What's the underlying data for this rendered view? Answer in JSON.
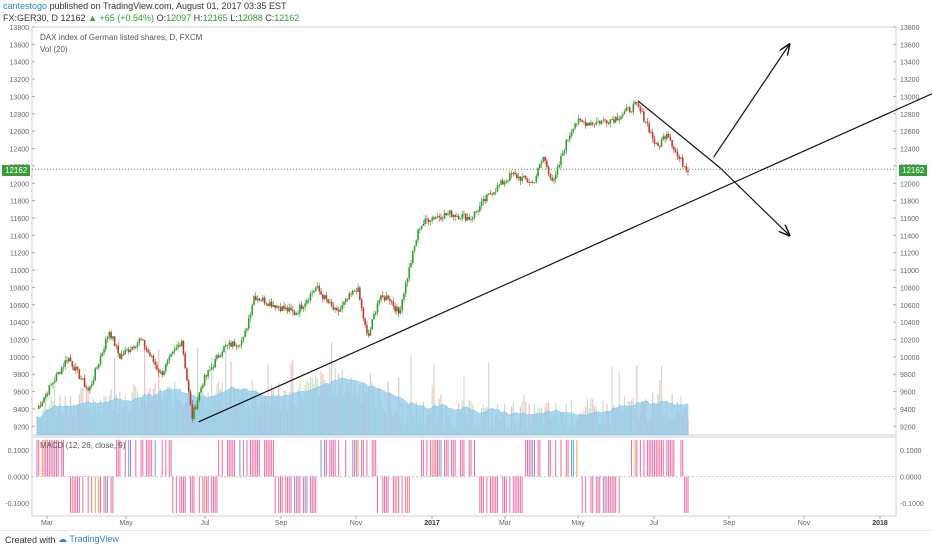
{
  "header": {
    "author": "cantestogo",
    "published": "published on TradingView.com, August 01, 2017 03:35 EST",
    "symbol": "FX:GER30, D",
    "last": "12162",
    "change": "+65 (+0.54%)",
    "o_label": "O:",
    "o": "12097",
    "h_label": "H:",
    "h": "12165",
    "l_label": "L:",
    "l": "12088",
    "c_label": "C:",
    "c": "12162"
  },
  "legend": {
    "title": "DAX index of German listed shares, D, FXCM",
    "vol": "Vol (20)",
    "macd": "MACD (12, 26, close, 9)"
  },
  "footer": {
    "created": "Created with",
    "brand": "TradingView"
  },
  "colors": {
    "up": "#2c9f2c",
    "down": "#c0392b",
    "volume": "#8fc9ec",
    "macd_pos": "#ea6fa7",
    "macd_neg": "#ea6fa7",
    "trend": "#111111",
    "price_line": "#3a9c3a"
  },
  "chart_data": [
    {
      "type": "candlestick",
      "title": "DAX index of German listed shares, D, FXCM",
      "ylim": [
        9100,
        13800
      ],
      "y_ticks": [
        9200,
        9400,
        9600,
        9800,
        10000,
        10200,
        10400,
        10600,
        10800,
        11000,
        11200,
        11400,
        11600,
        11800,
        12000,
        12200,
        12400,
        12600,
        12800,
        13000,
        13200,
        13400,
        13600,
        13800
      ],
      "x_ticks": [
        "Mar",
        "May",
        "Jul",
        "Sep",
        "Nov",
        "2017",
        "Mar",
        "May",
        "Jul",
        "Sep",
        "Nov",
        "2018"
      ],
      "last_price": 12162,
      "price_path": [
        [
          0,
          9400
        ],
        [
          2,
          9800
        ],
        [
          3,
          10000
        ],
        [
          5,
          9600
        ],
        [
          7,
          10300
        ],
        [
          8,
          10000
        ],
        [
          10,
          10200
        ],
        [
          12,
          9800
        ],
        [
          14,
          10200
        ],
        [
          15,
          9300
        ],
        [
          16,
          9700
        ],
        [
          18,
          10100
        ],
        [
          20,
          10200
        ],
        [
          21,
          10700
        ],
        [
          23,
          10600
        ],
        [
          25,
          10500
        ],
        [
          27,
          10800
        ],
        [
          29,
          10500
        ],
        [
          31,
          10800
        ],
        [
          32,
          10200
        ],
        [
          33,
          10650
        ],
        [
          34,
          10700
        ],
        [
          35,
          10500
        ],
        [
          36,
          11000
        ],
        [
          37,
          11500
        ],
        [
          38,
          11600
        ],
        [
          40,
          11650
        ],
        [
          42,
          11600
        ],
        [
          44,
          11900
        ],
        [
          46,
          12100
        ],
        [
          48,
          12000
        ],
        [
          49,
          12300
        ],
        [
          50,
          12000
        ],
        [
          51,
          12400
        ],
        [
          52,
          12700
        ],
        [
          54,
          12700
        ],
        [
          56,
          12750
        ],
        [
          58,
          12900
        ],
        [
          59,
          12700
        ],
        [
          60,
          12400
        ],
        [
          61,
          12600
        ],
        [
          62,
          12300
        ],
        [
          63,
          12162
        ]
      ],
      "trendlines": [
        {
          "from": [
            "2016-07-01",
            9250
          ],
          "to": [
            "2018-03-15",
            13230
          ]
        },
        {
          "from": [
            "2017-06-20",
            12950
          ],
          "to": [
            "2017-08-25",
            12180
          ]
        }
      ],
      "arrows": [
        {
          "from": [
            "2017-08-20",
            12300
          ],
          "to": [
            "2017-10-20",
            13600
          ]
        },
        {
          "from": [
            "2017-08-25",
            12180
          ],
          "to": [
            "2017-10-20",
            11400
          ]
        }
      ]
    },
    {
      "type": "bar",
      "title": "Vol (20)",
      "description_avg": "volume moving average area"
    },
    {
      "type": "bar",
      "title": "MACD (12, 26, close, 9)",
      "ylim": [
        -0.15,
        0.15
      ],
      "y_ticks": [
        0.1,
        0.0,
        -0.1
      ],
      "y_tick_labels": [
        "0.1000",
        "0.0000",
        "-0.1000"
      ]
    }
  ]
}
